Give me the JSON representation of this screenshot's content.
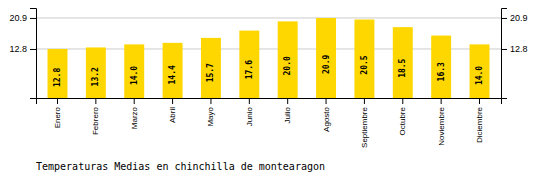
{
  "chart_data": {
    "type": "bar",
    "title": "Temperaturas Medias en chinchilla de montearagon",
    "categories": [
      "Enero",
      "Febrero",
      "Marzo",
      "Abril",
      "Mayo",
      "Junio",
      "Julio",
      "Agosto",
      "Septiembre",
      "Octubre",
      "Noviembre",
      "Diciembre"
    ],
    "values": [
      12.8,
      13.2,
      14.0,
      14.4,
      15.7,
      17.6,
      20.0,
      20.9,
      20.5,
      18.5,
      16.3,
      14.0
    ],
    "value_labels": [
      "12.8",
      "13.2",
      "14.0",
      "14.4",
      "15.7",
      "17.6",
      "20.0",
      "20.9",
      "20.5",
      "18.5",
      "16.3",
      "14.0"
    ],
    "color": "#FFD700",
    "ylim": [
      0,
      23.5
    ],
    "yticks": [
      12.8,
      20.9
    ],
    "y2lim": [
      0,
      23.5
    ],
    "y2ticks": [
      12.8,
      20.9
    ],
    "grid": true,
    "data_labels": true
  }
}
